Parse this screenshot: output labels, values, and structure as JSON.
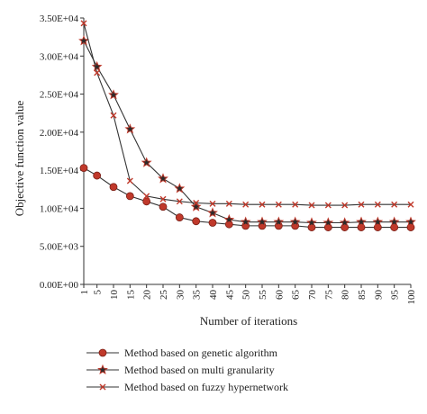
{
  "chart_data": {
    "type": "line",
    "title": "",
    "xlabel": "Number of iterations",
    "ylabel": "Objective function value",
    "x": [
      1,
      5,
      10,
      15,
      20,
      25,
      30,
      35,
      40,
      45,
      50,
      55,
      60,
      65,
      70,
      75,
      80,
      85,
      90,
      95,
      100
    ],
    "x_tick_labels": [
      "1",
      "5",
      "10",
      "15",
      "20",
      "25",
      "30",
      "35",
      "40",
      "45",
      "50",
      "55",
      "60",
      "65",
      "70",
      "75",
      "80",
      "85",
      "90",
      "95",
      "100"
    ],
    "ylim": [
      0,
      35000
    ],
    "y_ticks": [
      0,
      5000,
      10000,
      15000,
      20000,
      25000,
      30000,
      35000
    ],
    "y_tick_labels": [
      "0.00E+00",
      "5.00E+03",
      "1.00E+04",
      "1.50E+04",
      "2.00E+04",
      "2.50E+04",
      "3.00E+04",
      "3.50E+04"
    ],
    "grid": false,
    "legend_position": "bottom",
    "series": [
      {
        "name": "Method based on genetic algorithm",
        "marker": "circle",
        "color": "#c0392b",
        "line_color": "#333333",
        "values": [
          15300,
          14300,
          12800,
          11600,
          10900,
          10200,
          8800,
          8300,
          8100,
          7900,
          7700,
          7700,
          7700,
          7700,
          7500,
          7500,
          7500,
          7500,
          7500,
          7500,
          7500
        ]
      },
      {
        "name": "Method based on multi granularity",
        "marker": "star",
        "color": "#c0392b",
        "line_color": "#333333",
        "values": [
          32000,
          28600,
          24900,
          20400,
          16000,
          13900,
          12600,
          10200,
          9400,
          8500,
          8200,
          8200,
          8200,
          8200,
          8100,
          8100,
          8100,
          8200,
          8200,
          8200,
          8200
        ]
      },
      {
        "name": "Method based on fuzzy hypernetwork",
        "marker": "cross",
        "color": "#c0392b",
        "line_color": "#333333",
        "values": [
          34300,
          27800,
          22200,
          13600,
          11600,
          11200,
          10900,
          10700,
          10600,
          10600,
          10500,
          10500,
          10500,
          10500,
          10400,
          10400,
          10400,
          10500,
          10500,
          10500,
          10500
        ]
      }
    ]
  }
}
